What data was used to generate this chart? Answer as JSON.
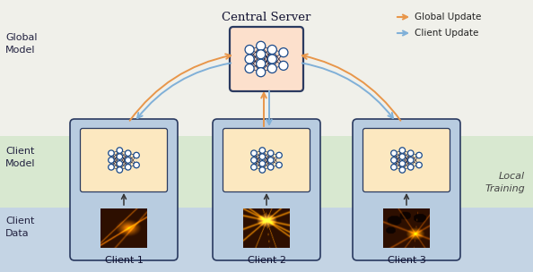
{
  "title": "Central Server",
  "bg_top": "#f0f0ea",
  "bg_green": "#d8e8d0",
  "bg_blue": "#c4d4e4",
  "client_labels": [
    "Client 1",
    "Client 2",
    "Client 3"
  ],
  "legend_items": [
    {
      "label": "Global Update",
      "color": "#e8964a"
    },
    {
      "label": "Client Update",
      "color": "#80b0d8"
    }
  ],
  "server_box_color": "#fce0cc",
  "server_box_border": "#2a3a60",
  "client_box_color": "#b8cce0",
  "client_box_border": "#2a3a60",
  "nn_box_color": "#fce8c0",
  "nn_box_border": "#2a3a60",
  "node_color": "white",
  "node_border": "#1a4a8a",
  "arrow_global": "#e8964a",
  "arrow_client": "#80b0d8",
  "figsize": [
    5.94,
    3.04
  ],
  "dpi": 100
}
